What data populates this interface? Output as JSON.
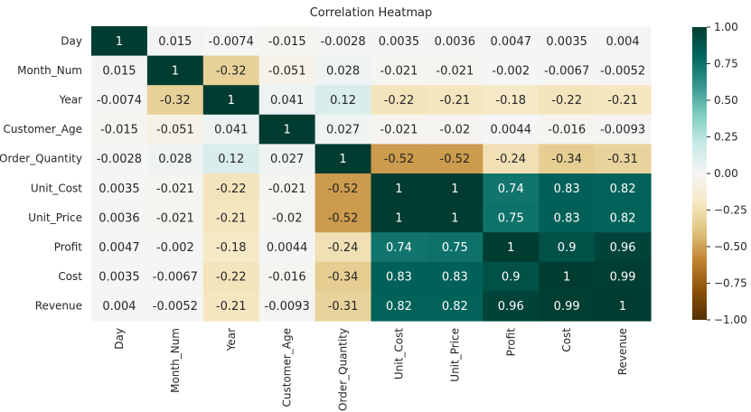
{
  "chart_data": {
    "type": "heatmap",
    "title": "Correlation Heatmap",
    "xlabel": "",
    "ylabel": "",
    "x_labels": [
      "Day",
      "Month_Num",
      "Year",
      "Customer_Age",
      "Order_Quantity",
      "Unit_Cost",
      "Unit_Price",
      "Profit",
      "Cost",
      "Revenue"
    ],
    "y_labels": [
      "Day",
      "Month_Num",
      "Year",
      "Customer_Age",
      "Order_Quantity",
      "Unit_Cost",
      "Unit_Price",
      "Profit",
      "Cost",
      "Revenue"
    ],
    "values": [
      [
        1,
        0.015,
        -0.0074,
        -0.015,
        -0.0028,
        0.0035,
        0.0036,
        0.0047,
        0.0035,
        0.004
      ],
      [
        0.015,
        1,
        -0.32,
        -0.051,
        0.028,
        -0.021,
        -0.021,
        -0.002,
        -0.0067,
        -0.0052
      ],
      [
        -0.0074,
        -0.32,
        1,
        0.041,
        0.12,
        -0.22,
        -0.21,
        -0.18,
        -0.22,
        -0.21
      ],
      [
        -0.015,
        -0.051,
        0.041,
        1,
        0.027,
        -0.021,
        -0.02,
        0.0044,
        -0.016,
        -0.0093
      ],
      [
        -0.0028,
        0.028,
        0.12,
        0.027,
        1,
        -0.52,
        -0.52,
        -0.24,
        -0.34,
        -0.31
      ],
      [
        0.0035,
        -0.021,
        -0.22,
        -0.021,
        -0.52,
        1,
        1,
        0.74,
        0.83,
        0.82
      ],
      [
        0.0036,
        -0.021,
        -0.21,
        -0.02,
        -0.52,
        1,
        1,
        0.75,
        0.83,
        0.82
      ],
      [
        0.0047,
        -0.002,
        -0.18,
        0.0044,
        -0.24,
        0.74,
        0.75,
        1,
        0.9,
        0.96
      ],
      [
        0.0035,
        -0.0067,
        -0.22,
        -0.016,
        -0.34,
        0.83,
        0.83,
        0.9,
        1,
        0.99
      ],
      [
        0.004,
        -0.0052,
        -0.21,
        -0.0093,
        -0.31,
        0.82,
        0.82,
        0.96,
        0.99,
        1
      ]
    ],
    "value_range": [
      -1,
      1
    ],
    "colormap": "BrBG",
    "colorbar_ticks": [
      "1.00",
      "0.75",
      "0.50",
      "0.25",
      "0.00",
      "-0.25",
      "-0.50",
      "-0.75",
      "-1.00"
    ],
    "grid": false,
    "legend": "colorbar-right"
  },
  "colors": {
    "stops": [
      "#543005",
      "#8c510a",
      "#bf812d",
      "#dfc27d",
      "#f6e8c3",
      "#f5f5f5",
      "#c7eae5",
      "#80cdc1",
      "#35978f",
      "#01665e",
      "#003c30"
    ],
    "text": "#262626"
  }
}
